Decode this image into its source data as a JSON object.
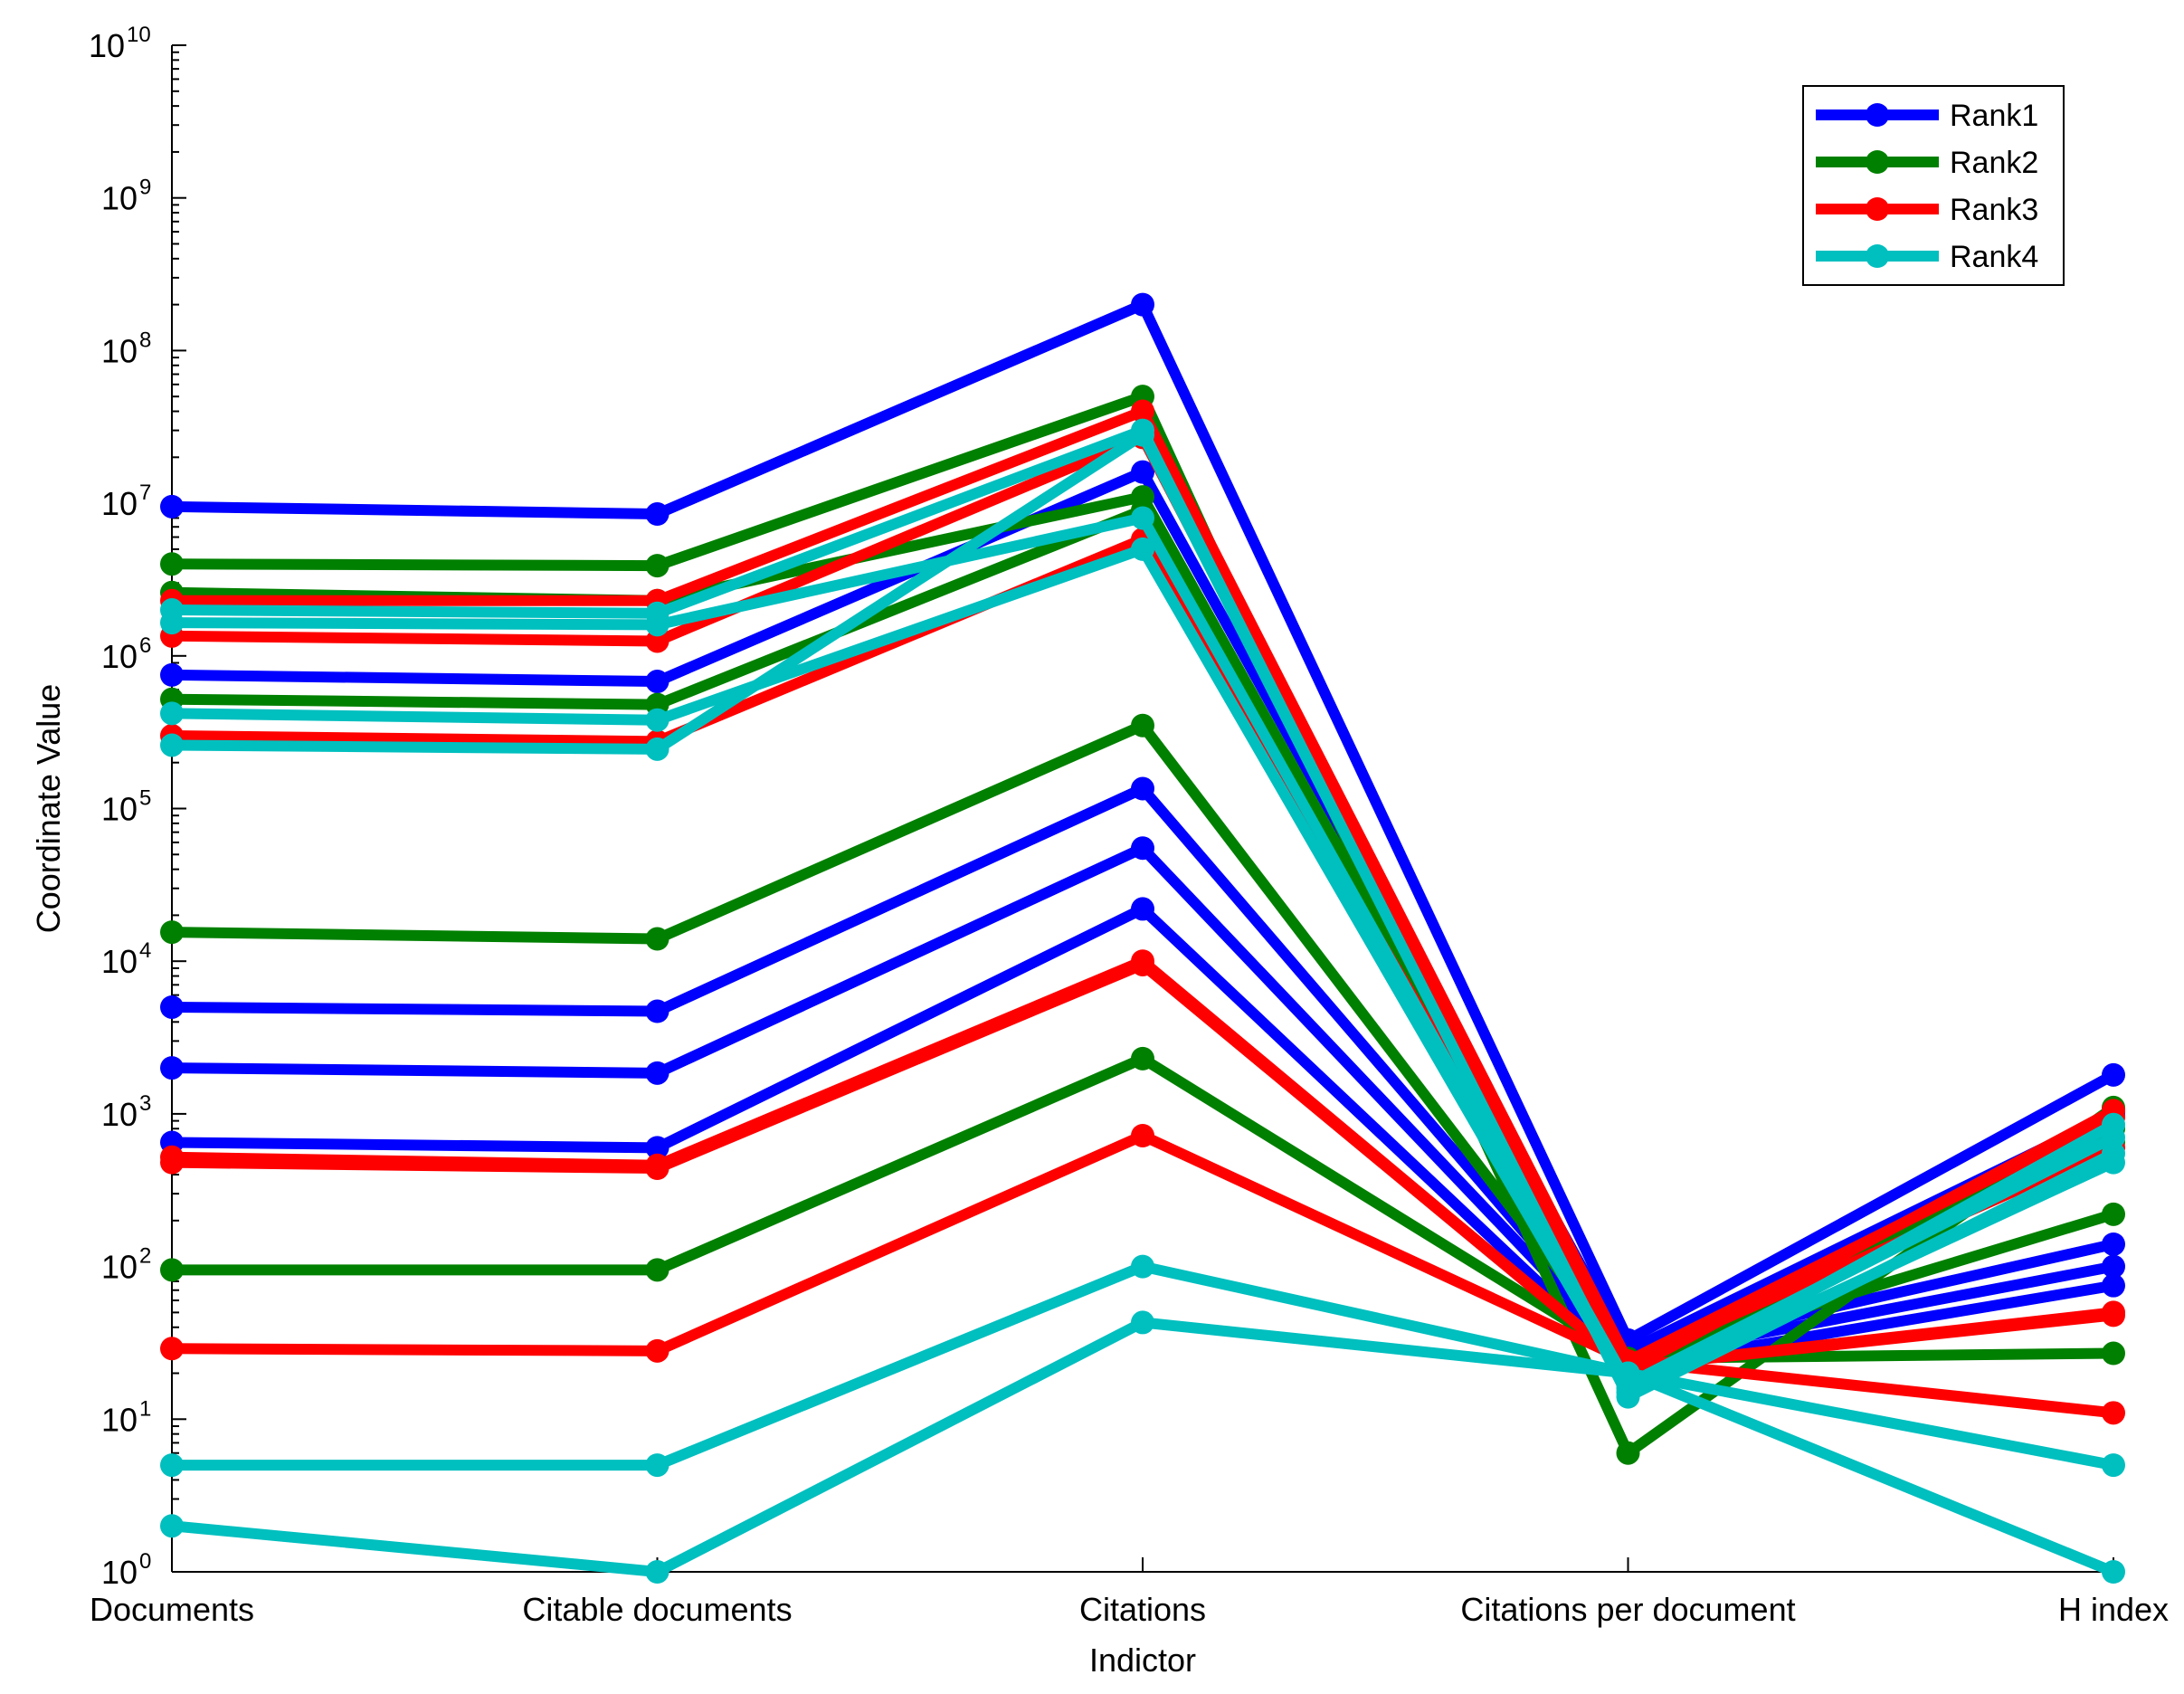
{
  "chart_data": {
    "type": "line",
    "title": "",
    "xlabel": "Indictor",
    "ylabel": "Coordinate Value",
    "yscale": "log",
    "ylim": [
      1,
      10000000000
    ],
    "y_ticks": [
      {
        "base": "10",
        "exp": "0"
      },
      {
        "base": "10",
        "exp": "1"
      },
      {
        "base": "10",
        "exp": "2"
      },
      {
        "base": "10",
        "exp": "3"
      },
      {
        "base": "10",
        "exp": "4"
      },
      {
        "base": "10",
        "exp": "5"
      },
      {
        "base": "10",
        "exp": "6"
      },
      {
        "base": "10",
        "exp": "7"
      },
      {
        "base": "10",
        "exp": "8"
      },
      {
        "base": "10",
        "exp": "9"
      },
      {
        "base": "10",
        "exp": "10"
      }
    ],
    "categories": [
      "Documents",
      "Citable documents",
      "Citations",
      "Citations per document",
      "H index"
    ],
    "legend_position": "top-right",
    "legend": [
      {
        "name": "Rank1",
        "color": "#0000ff"
      },
      {
        "name": "Rank2",
        "color": "#008000"
      },
      {
        "name": "Rank3",
        "color": "#ff0000"
      },
      {
        "name": "Rank4",
        "color": "#00bfbf"
      }
    ],
    "series": [
      {
        "group": "Rank1",
        "color": "#0000ff",
        "values": [
          9500000,
          8500000,
          200000000,
          33,
          1800
        ]
      },
      {
        "group": "Rank1",
        "color": "#0000ff",
        "values": [
          750000,
          680000,
          16000000,
          28,
          1000
        ]
      },
      {
        "group": "Rank1",
        "color": "#0000ff",
        "values": [
          5000,
          4700,
          135000,
          27,
          140
        ]
      },
      {
        "group": "Rank1",
        "color": "#0000ff",
        "values": [
          2000,
          1850,
          55000,
          25,
          100
        ]
      },
      {
        "group": "Rank1",
        "color": "#0000ff",
        "values": [
          650,
          600,
          22000,
          22,
          75
        ]
      },
      {
        "group": "Rank2",
        "color": "#008000",
        "values": [
          4000000,
          3900000,
          50000000,
          6,
          1100
        ]
      },
      {
        "group": "Rank2",
        "color": "#008000",
        "values": [
          2600000,
          2300000,
          11000000,
          22,
          650
        ]
      },
      {
        "group": "Rank2",
        "color": "#008000",
        "values": [
          520000,
          480000,
          9000000,
          20,
          800
        ]
      },
      {
        "group": "Rank2",
        "color": "#008000",
        "values": [
          15500,
          14000,
          350000,
          24,
          220
        ]
      },
      {
        "group": "Rank2",
        "color": "#008000",
        "values": [
          95,
          95,
          2300,
          25,
          27
        ]
      },
      {
        "group": "Rank3",
        "color": "#ff0000",
        "values": [
          2300000,
          2300000,
          40000000,
          24,
          950
        ]
      },
      {
        "group": "Rank3",
        "color": "#ff0000",
        "values": [
          1350000,
          1250000,
          27000000,
          21,
          1050
        ]
      },
      {
        "group": "Rank3",
        "color": "#ff0000",
        "values": [
          300000,
          275000,
          5800000,
          24,
          600
        ]
      },
      {
        "group": "Rank3",
        "color": "#ff0000",
        "values": [
          520,
          460,
          10000,
          22,
          50
        ]
      },
      {
        "group": "Rank3",
        "color": "#ff0000",
        "values": [
          480,
          440,
          9500,
          22,
          48
        ]
      },
      {
        "group": "Rank3",
        "color": "#ff0000",
        "values": [
          29,
          28,
          720,
          24,
          11
        ]
      },
      {
        "group": "Rank4",
        "color": "#00bfbf",
        "values": [
          2000000,
          1900000,
          30000000,
          14,
          550
        ]
      },
      {
        "group": "Rank4",
        "color": "#00bfbf",
        "values": [
          1650000,
          1600000,
          8000000,
          17,
          700
        ]
      },
      {
        "group": "Rank4",
        "color": "#00bfbf",
        "values": [
          420000,
          380000,
          5000000,
          16,
          480
        ]
      },
      {
        "group": "Rank4",
        "color": "#00bfbf",
        "values": [
          260000,
          245000,
          28000000,
          15,
          850
        ]
      },
      {
        "group": "Rank4",
        "color": "#00bfbf",
        "values": [
          5,
          5,
          100,
          20,
          5
        ]
      },
      {
        "group": "Rank4",
        "color": "#00bfbf",
        "values": [
          2,
          1,
          43,
          20,
          1
        ]
      }
    ]
  }
}
